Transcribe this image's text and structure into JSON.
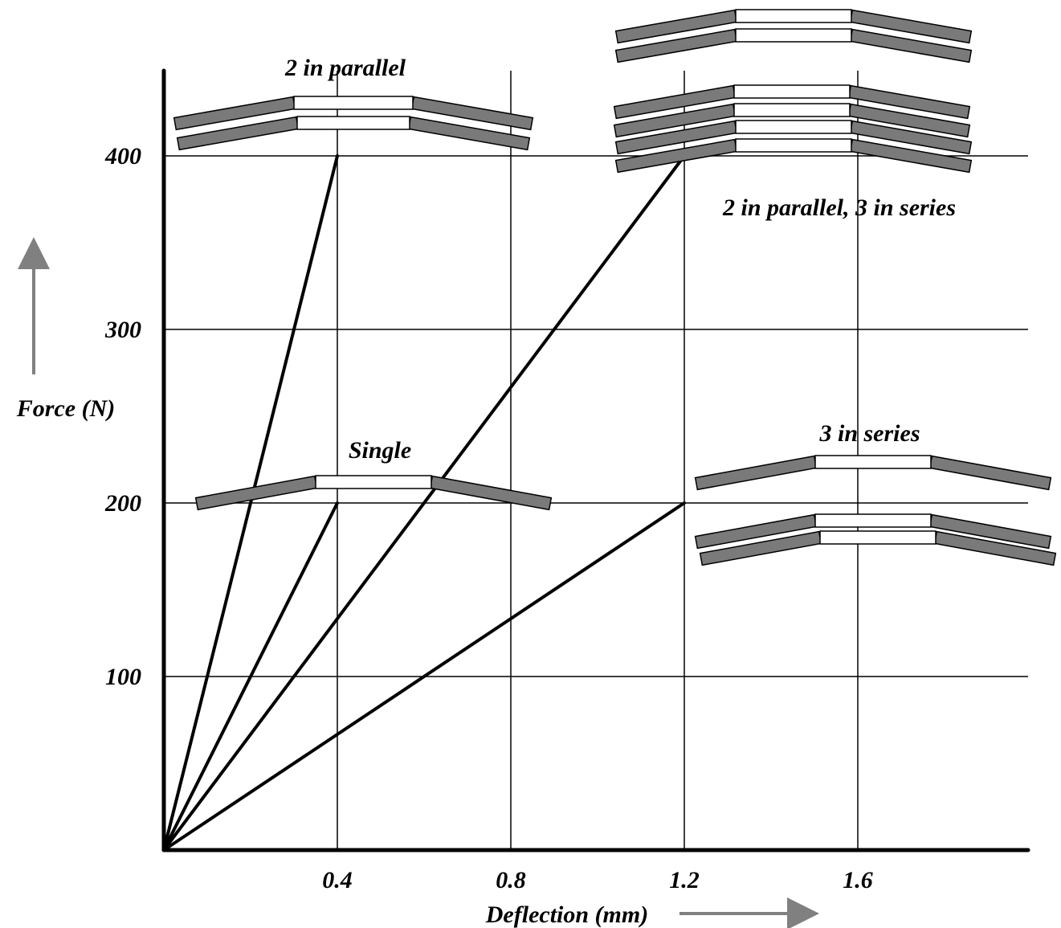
{
  "chart_data": {
    "type": "line",
    "xlabel": "Deflection (mm)",
    "ylabel": "Force (N)",
    "xlim": [
      0,
      2.0
    ],
    "ylim": [
      0,
      450
    ],
    "x_ticks": [
      "0.4",
      "0.8",
      "1.2",
      "1.6"
    ],
    "x_tick_values": [
      0.4,
      0.8,
      1.2,
      1.6
    ],
    "y_ticks": [
      "100",
      "200",
      "300",
      "400"
    ],
    "y_tick_values": [
      100,
      200,
      300,
      400
    ],
    "grid": true,
    "series": [
      {
        "points": [
          [
            0,
            0
          ],
          [
            0.4,
            400
          ]
        ]
      },
      {
        "points": [
          [
            0,
            0
          ],
          [
            0.4,
            200
          ]
        ]
      },
      {
        "points": [
          [
            0,
            0
          ],
          [
            1.2,
            400
          ]
        ]
      },
      {
        "points": [
          [
            0,
            0
          ],
          [
            1.2,
            200
          ]
        ]
      }
    ],
    "annotations": [
      {
        "text": "2 in parallel"
      },
      {
        "text": "Single"
      },
      {
        "text": "2 in parallel, 3 in series"
      },
      {
        "text": "3 in series"
      }
    ]
  },
  "colors": {
    "axis": "#000000",
    "spring_arm": "#7a7a7a",
    "arrow": "#808080"
  }
}
